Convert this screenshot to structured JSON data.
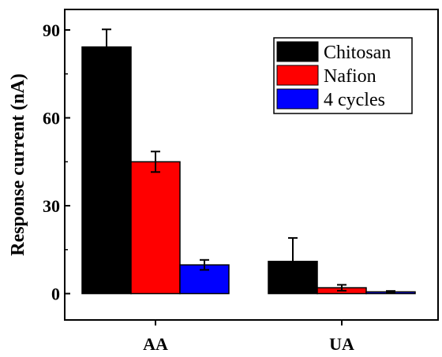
{
  "chart_data": {
    "type": "bar",
    "categories": [
      "AA",
      "UA"
    ],
    "series": [
      {
        "name": "Chitosan",
        "color": "#000000",
        "values": [
          84.2,
          11.0
        ],
        "errors": [
          6.0,
          8.0
        ]
      },
      {
        "name": "Nafion",
        "color": "#ff0000",
        "values": [
          45.0,
          2.0
        ],
        "errors": [
          3.5,
          1.0
        ]
      },
      {
        "name": "4 cycles",
        "color": "#0000ff",
        "values": [
          9.8,
          0.6
        ],
        "errors": [
          1.7,
          0.3
        ]
      }
    ],
    "ylabel": "Response current (nA)",
    "xlabel": "",
    "ylim": [
      -9,
      97
    ],
    "yticks": [
      0,
      30,
      60,
      90
    ],
    "legend_position": "top-right",
    "grid": false
  }
}
